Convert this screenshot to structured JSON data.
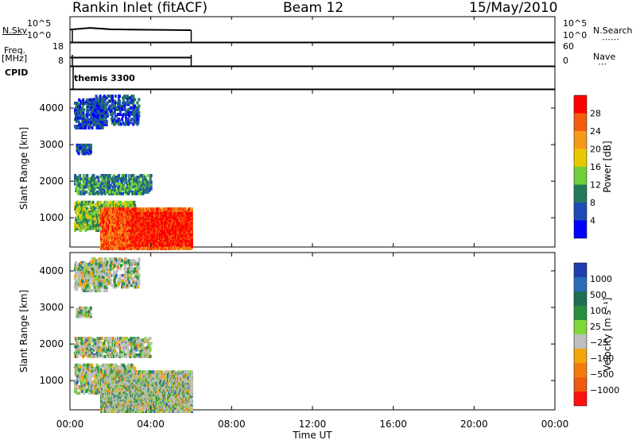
{
  "header": {
    "station": "Rankin Inlet (fitACF)",
    "beam": "Beam 12",
    "date": "15/May/2010"
  },
  "side_labels": {
    "nsky": "N.Sky",
    "freq": "Freq.",
    "freq_unit": "[MHz]",
    "cpid": "CPID",
    "nsearch": "N.Search",
    "nave": "Nave",
    "nsky_ticks": [
      "10^5",
      "10^0"
    ],
    "nsky_ticks_right": [
      "10^5",
      "10^0"
    ],
    "freq_ticks": [
      "18",
      "8"
    ],
    "nave_ticks": [
      "60",
      "0"
    ]
  },
  "cpid_value": "themis 3300",
  "colors": {
    "power": [
      "#0000ff",
      "#1e4cb4",
      "#237a5a",
      "#6fcf3a",
      "#e8c800",
      "#f59a1a",
      "#f25d10",
      "#ff0000"
    ],
    "velocity": [
      "#1f3fb0",
      "#2b6cb8",
      "#1f6e55",
      "#2a8f3e",
      "#7fd83a",
      "#bebebe",
      "#f2a60e",
      "#f27c10",
      "#ee5a10",
      "#ff1010"
    ]
  },
  "chart_data": [
    {
      "type": "line",
      "name": "N.Sky / N.Search",
      "x": [
        "00:00",
        "01:00",
        "02:00",
        "03:00",
        "04:00",
        "05:00",
        "06:00"
      ],
      "values": [
        3.0,
        3.8,
        3.1,
        3.0,
        2.9,
        2.8,
        2.7
      ],
      "xlim": [
        "00:00",
        "06:00"
      ]
    },
    {
      "type": "line",
      "name": "Freq / Nave",
      "x": [
        "00:00",
        "01:00",
        "02:00",
        "03:00",
        "04:00",
        "05:00",
        "06:00"
      ],
      "values": [
        11.5,
        11.5,
        11.5,
        11.5,
        11.5,
        11.5,
        11.5
      ],
      "ylim": [
        8,
        18
      ]
    },
    {
      "type": "heatmap",
      "ylabel": "Slant Range [km]",
      "yticks": [
        "1000",
        "2000",
        "3000",
        "4000"
      ],
      "ylim": [
        200,
        4500
      ],
      "colorbar_label": "Power [dB]",
      "colorbar_ticks": [
        "4",
        "8",
        "12",
        "16",
        "20",
        "24",
        "28"
      ]
    },
    {
      "type": "heatmap",
      "ylabel": "Slant Range [km]",
      "yticks": [
        "1000",
        "2000",
        "3000",
        "4000"
      ],
      "ylim": [
        200,
        4500
      ],
      "colorbar_label": "Velocity [m s⁻¹]",
      "colorbar_ticks": [
        "1000",
        "500",
        "100",
        "25",
        "−25",
        "−100",
        "−500",
        "−1000"
      ]
    }
  ],
  "time_axis": {
    "ticks": [
      "00:00",
      "04:00",
      "08:00",
      "12:00",
      "16:00",
      "20:00",
      "00:00"
    ],
    "label": "Time UT"
  }
}
